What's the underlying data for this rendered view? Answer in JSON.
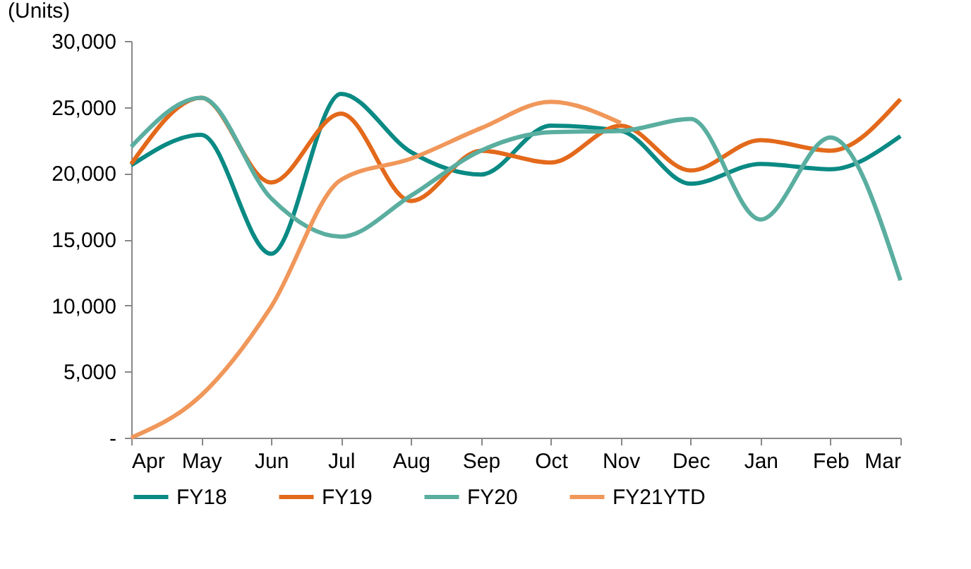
{
  "chart_data": {
    "type": "line",
    "ylabel": "(Units)",
    "categories": [
      "Apr",
      "May",
      "Jun",
      "Jul",
      "Aug",
      "Sep",
      "Oct",
      "Nov",
      "Dec",
      "Jan",
      "Feb",
      "Mar"
    ],
    "ylim": [
      0,
      30000
    ],
    "yticks": [
      {
        "value": 0,
        "label": "-"
      },
      {
        "value": 5000,
        "label": "5,000"
      },
      {
        "value": 10000,
        "label": "10,000"
      },
      {
        "value": 15000,
        "label": "15,000"
      },
      {
        "value": 20000,
        "label": "20,000"
      },
      {
        "value": 25000,
        "label": "25,000"
      },
      {
        "value": 30000,
        "label": "30,000"
      }
    ],
    "series": [
      {
        "name": "FY18",
        "color": "#0a8a84",
        "values": [
          20600,
          22900,
          13900,
          26000,
          21600,
          19900,
          23600,
          23200,
          19200,
          20700,
          20300,
          22800
        ]
      },
      {
        "name": "FY19",
        "color": "#e3691b",
        "values": [
          20700,
          25700,
          19300,
          24500,
          17900,
          21700,
          20800,
          23600,
          20200,
          22500,
          21700,
          25600
        ]
      },
      {
        "name": "FY20",
        "color": "#5aaea0",
        "values": [
          22000,
          25700,
          18100,
          15200,
          18300,
          21700,
          23100,
          23200,
          24100,
          16500,
          22700,
          11900
        ]
      },
      {
        "name": "FY21YTD",
        "color": "#f0975a",
        "values": [
          0,
          3200,
          9900,
          19500,
          21100,
          23400,
          25400,
          23800,
          null,
          null,
          null,
          null
        ]
      }
    ],
    "grid": false,
    "legend": "bottom",
    "marker": "none",
    "line_style": "solid"
  }
}
